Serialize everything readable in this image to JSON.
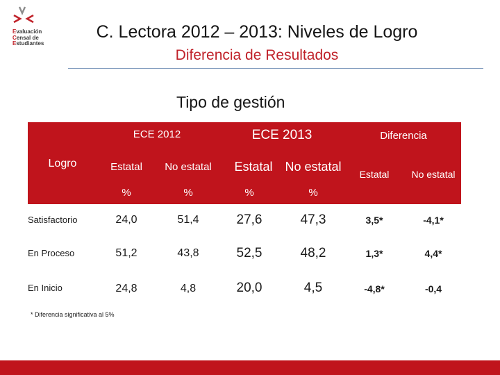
{
  "logo": {
    "line1_first": "E",
    "line1_rest": "valuación",
    "line2_first": "C",
    "line2_rest": "ensal de",
    "line3_first": "E",
    "line3_rest": "studiantes"
  },
  "header": {
    "title": "C. Lectora 2012 – 2013: Niveles de Logro",
    "subtitle": "Diferencia de Resultados"
  },
  "section_title": "Tipo de gestión",
  "table": {
    "group_headers": [
      "ECE 2012",
      "ECE 2013",
      "Diferencia"
    ],
    "row_header": "Logro",
    "column_headers": [
      "Estatal",
      "No estatal",
      "Estatal",
      "No estatal",
      "Estatal",
      "No estatal"
    ],
    "units": [
      "%",
      "%",
      "%",
      "%"
    ],
    "rows": [
      {
        "label": "Satisfactorio",
        "values": [
          "24,0",
          "51,4",
          "27,6",
          "47,3",
          "3,5*",
          "-4,1*"
        ]
      },
      {
        "label": "En Proceso",
        "values": [
          "51,2",
          "43,8",
          "52,5",
          "48,2",
          "1,3*",
          "4,4*"
        ]
      },
      {
        "label": "En Inicio",
        "values": [
          "24,8",
          "4,8",
          "20,0",
          "4,5",
          "-4,8*",
          "-0,4"
        ]
      }
    ]
  },
  "footnote": "* Diferencia significativa al 5%",
  "colors": {
    "accent": "#c0141c",
    "rule": "#7f9bbd"
  }
}
